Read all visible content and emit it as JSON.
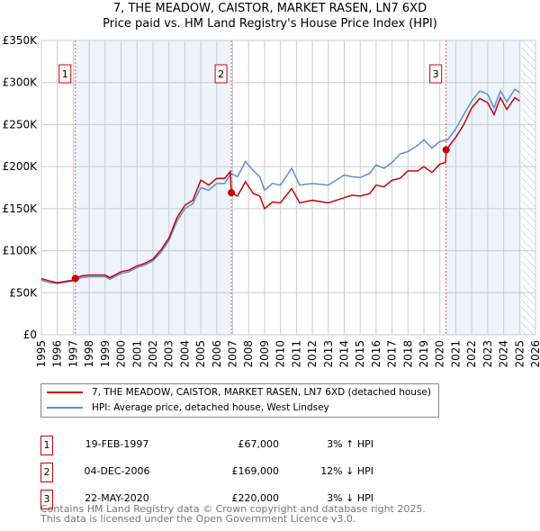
{
  "chart_data": {
    "type": "line",
    "title": "7, THE MEADOW, CAISTOR, MARKET RASEN, LN7 6XD",
    "subtitle": "Price paid vs. HM Land Registry's House Price Index (HPI)",
    "xlim": [
      1995,
      2026
    ],
    "ylim": [
      0,
      350000
    ],
    "x_ticks": [
      "1995",
      "1996",
      "1997",
      "1998",
      "1999",
      "2000",
      "2001",
      "2002",
      "2003",
      "2004",
      "2005",
      "2006",
      "2007",
      "2008",
      "2009",
      "2010",
      "2011",
      "2012",
      "2013",
      "2014",
      "2015",
      "2016",
      "2017",
      "2018",
      "2019",
      "2020",
      "2021",
      "2022",
      "2023",
      "2024",
      "2025",
      "2026"
    ],
    "y_ticks": [
      {
        "v": 0,
        "label": "£0"
      },
      {
        "v": 50000,
        "label": "£50K"
      },
      {
        "v": 100000,
        "label": "£100K"
      },
      {
        "v": 150000,
        "label": "£150K"
      },
      {
        "v": 200000,
        "label": "£200K"
      },
      {
        "v": 250000,
        "label": "£250K"
      },
      {
        "v": 300000,
        "label": "£300K"
      },
      {
        "v": 350000,
        "label": "£350K"
      }
    ],
    "grid": true,
    "series": [
      {
        "name": "7, THE MEADOW, CAISTOR, MARKET RASEN, LN7 6XD (detached house)",
        "color": "#cc0000",
        "x": [
          1995,
          1995.5,
          1996,
          1997,
          1997.13,
          1997.5,
          1998,
          1999,
          1999.3,
          2000,
          2000.5,
          2001,
          2001.5,
          2002,
          2002.5,
          2003,
          2003.5,
          2004,
          2004.5,
          2005,
          2005.5,
          2006,
          2006.5,
          2006.85,
          2006.92,
          2007.3,
          2007.8,
          2008.3,
          2008.7,
          2009,
          2009.5,
          2010,
          2010.7,
          2011.2,
          2012,
          2013,
          2014,
          2014.5,
          2015,
          2015.6,
          2016,
          2016.5,
          2017,
          2017.5,
          2018,
          2018.6,
          2019,
          2019.5,
          2020,
          2020.35,
          2020.4,
          2021,
          2021.5,
          2022,
          2022.5,
          2023,
          2023.4,
          2023.8,
          2024.2,
          2024.7,
          2025
        ],
        "y": [
          67000,
          64000,
          62000,
          65000,
          67000,
          70000,
          71000,
          71000,
          68000,
          75000,
          77000,
          82000,
          85000,
          90000,
          101000,
          115000,
          139000,
          154000,
          160000,
          184000,
          178000,
          186000,
          186000,
          194000,
          169000,
          165000,
          182000,
          168000,
          165000,
          150000,
          158000,
          157000,
          174000,
          157000,
          160000,
          157000,
          163000,
          166000,
          165000,
          168000,
          178000,
          176000,
          184000,
          186000,
          195000,
          195000,
          200000,
          193000,
          203000,
          205000,
          220000,
          235000,
          250000,
          270000,
          281000,
          276000,
          262000,
          282000,
          268000,
          282000,
          278000
        ]
      },
      {
        "name": "HPI: Average price, detached house, West Lindsey",
        "color": "#5b8fd0",
        "x": [
          1995,
          1995.5,
          1996,
          1997,
          1997.5,
          1998,
          1999,
          1999.3,
          2000,
          2000.5,
          2001,
          2001.5,
          2002,
          2002.5,
          2003,
          2003.5,
          2004,
          2004.5,
          2005,
          2005.5,
          2006,
          2006.5,
          2006.9,
          2007.3,
          2007.8,
          2008.3,
          2008.7,
          2009,
          2009.5,
          2010,
          2010.7,
          2011.2,
          2012,
          2013,
          2014,
          2014.5,
          2015,
          2015.6,
          2016,
          2016.5,
          2017,
          2017.5,
          2018,
          2018.6,
          2019,
          2019.5,
          2020,
          2020.5,
          2021,
          2021.5,
          2022,
          2022.5,
          2023,
          2023.4,
          2023.8,
          2024.2,
          2024.7,
          2025
        ],
        "y": [
          65000,
          62000,
          61000,
          64000,
          68000,
          69000,
          69000,
          66000,
          73000,
          75000,
          80000,
          83000,
          88000,
          98000,
          112000,
          135000,
          150000,
          156000,
          175000,
          172000,
          180000,
          180000,
          192000,
          188000,
          206000,
          195000,
          188000,
          172000,
          180000,
          178000,
          198000,
          178000,
          180000,
          178000,
          190000,
          188000,
          187000,
          192000,
          202000,
          198000,
          205000,
          215000,
          218000,
          225000,
          232000,
          222000,
          230000,
          232000,
          245000,
          262000,
          278000,
          290000,
          286000,
          270000,
          290000,
          277000,
          292000,
          288000
        ]
      }
    ],
    "sales": [
      {
        "n": "1",
        "date": "19-FEB-1997",
        "x": 1997.13,
        "price": "£67,000",
        "price_v": 67000,
        "hpi": "3% ↑ HPI"
      },
      {
        "n": "2",
        "date": "04-DEC-2006",
        "x": 2006.92,
        "price": "£169,000",
        "price_v": 169000,
        "hpi": "12% ↓ HPI"
      },
      {
        "n": "3",
        "date": "22-MAY-2020",
        "x": 2020.39,
        "price": "£220,000",
        "price_v": 220000,
        "hpi": "3% ↓ HPI"
      }
    ],
    "shaded": [
      [
        1997.13,
        2006.92
      ],
      [
        2020.39,
        2025.1
      ]
    ],
    "forecast_start": 2025.1
  },
  "footer": {
    "line1": "Contains HM Land Registry data © Crown copyright and database right 2025.",
    "line2": "This data is licensed under the Open Government Licence v3.0."
  }
}
